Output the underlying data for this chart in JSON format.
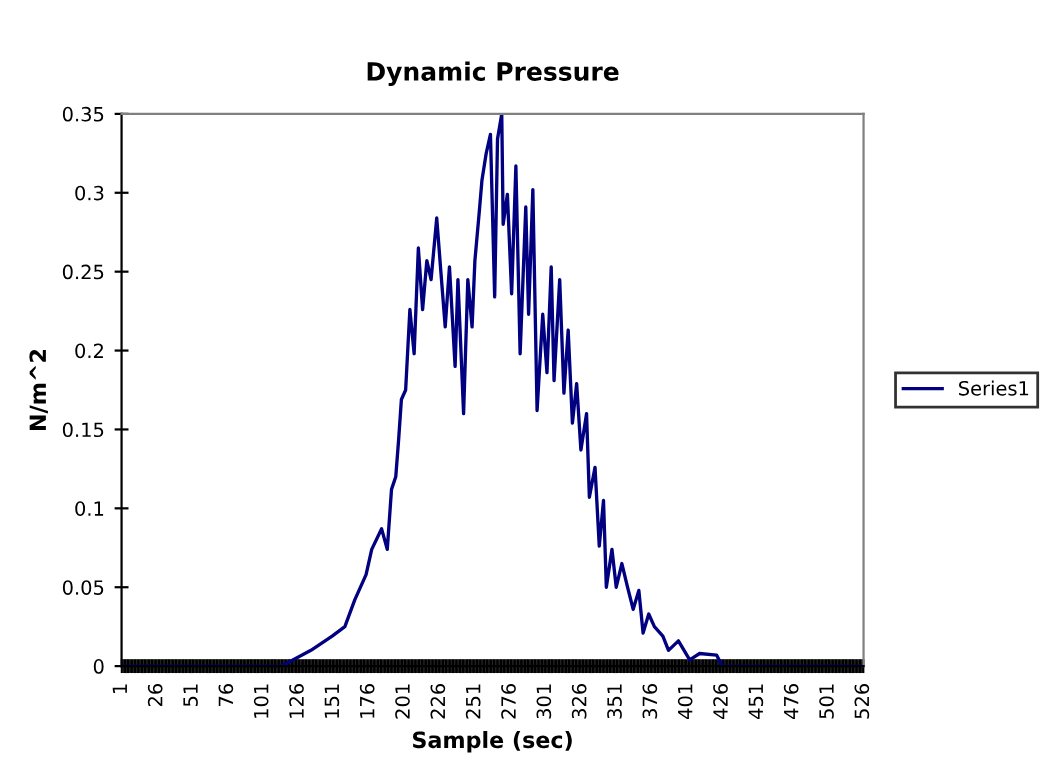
{
  "chart_data": {
    "type": "line",
    "title": "Dynamic Pressure",
    "xlabel": "Sample (sec)",
    "ylabel": "N/m^2",
    "x": [
      1,
      114,
      135,
      150,
      159,
      166,
      174,
      178,
      185,
      189,
      192,
      195,
      197,
      199,
      202,
      205,
      208,
      211,
      214,
      217,
      220,
      224,
      227,
      230,
      233,
      237,
      239,
      243,
      246,
      249,
      251,
      254,
      256,
      259,
      262,
      265,
      267,
      270,
      271,
      274,
      277,
      280,
      283,
      287,
      289,
      292,
      295,
      299,
      302,
      305,
      307,
      311,
      314,
      317,
      320,
      323,
      326,
      330,
      332,
      336,
      339,
      342,
      344,
      348,
      351,
      355,
      359,
      363,
      367,
      370,
      374,
      378,
      384,
      388,
      395,
      403,
      410,
      422,
      426,
      526
    ],
    "series": [
      {
        "name": "Series1",
        "color": "#000080",
        "values": [
          0,
          0,
          0.01,
          0.019,
          0.025,
          0.042,
          0.058,
          0.074,
          0.087,
          0.074,
          0.112,
          0.12,
          0.143,
          0.169,
          0.175,
          0.226,
          0.198,
          0.265,
          0.226,
          0.257,
          0.245,
          0.284,
          0.249,
          0.215,
          0.253,
          0.19,
          0.245,
          0.16,
          0.245,
          0.215,
          0.257,
          0.287,
          0.308,
          0.325,
          0.337,
          0.234,
          0.334,
          0.35,
          0.28,
          0.299,
          0.236,
          0.317,
          0.198,
          0.291,
          0.223,
          0.302,
          0.162,
          0.223,
          0.186,
          0.253,
          0.181,
          0.245,
          0.173,
          0.213,
          0.154,
          0.179,
          0.137,
          0.16,
          0.107,
          0.126,
          0.076,
          0.105,
          0.05,
          0.074,
          0.05,
          0.065,
          0.05,
          0.036,
          0.048,
          0.021,
          0.033,
          0.025,
          0.019,
          0.01,
          0.016,
          0.004,
          0.008,
          0.007,
          0,
          0
        ]
      }
    ],
    "xlim": [
      1,
      526
    ],
    "xticks": [
      1,
      26,
      51,
      76,
      101,
      126,
      151,
      176,
      201,
      226,
      251,
      276,
      301,
      326,
      351,
      376,
      401,
      426,
      451,
      476,
      501,
      526
    ],
    "ylim": [
      0,
      0.35
    ],
    "yticks": [
      0,
      0.05,
      0.1,
      0.15,
      0.2,
      0.25,
      0.3,
      0.35
    ],
    "grid": false,
    "legend": "right",
    "marker": "none",
    "line_style": "solid"
  }
}
